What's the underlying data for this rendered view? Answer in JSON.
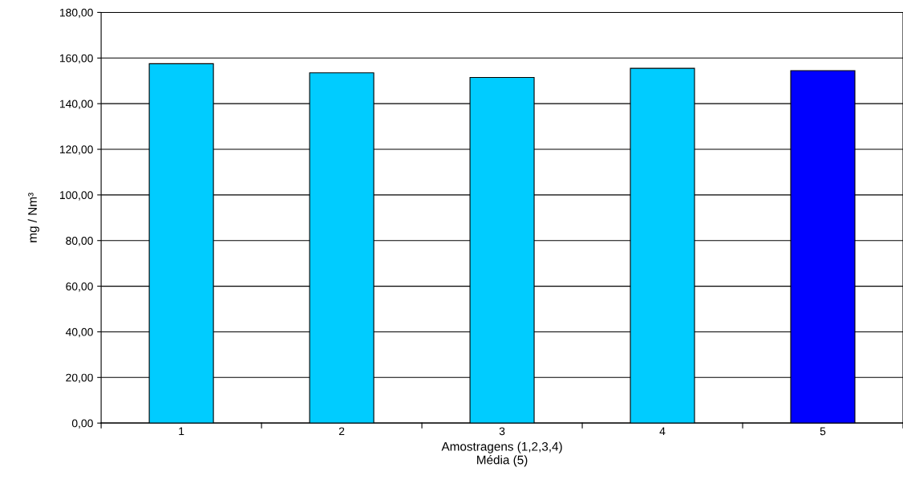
{
  "chart_data": {
    "type": "bar",
    "categories": [
      "1",
      "2",
      "3",
      "4",
      "5"
    ],
    "values": [
      157.5,
      153.5,
      151.5,
      155.5,
      154.5
    ],
    "colors": [
      "#00ccff",
      "#00ccff",
      "#00ccff",
      "#00ccff",
      "#0000ff"
    ],
    "xlabel": "Amostragens (1,2,3,4)\nMédia (5)",
    "ylabel": "mg / Nm³",
    "ylim": [
      0,
      180
    ],
    "yticks": [
      {
        "value": 0,
        "label": "0,00"
      },
      {
        "value": 20,
        "label": "20,00"
      },
      {
        "value": 40,
        "label": "40,00"
      },
      {
        "value": 60,
        "label": "60,00"
      },
      {
        "value": 80,
        "label": "80,00"
      },
      {
        "value": 100,
        "label": "100,00"
      },
      {
        "value": 120,
        "label": "120,00"
      },
      {
        "value": 140,
        "label": "140,00"
      },
      {
        "value": 160,
        "label": "160,00"
      },
      {
        "value": 180,
        "label": "180,00"
      }
    ],
    "grid": "y",
    "legend": false
  }
}
